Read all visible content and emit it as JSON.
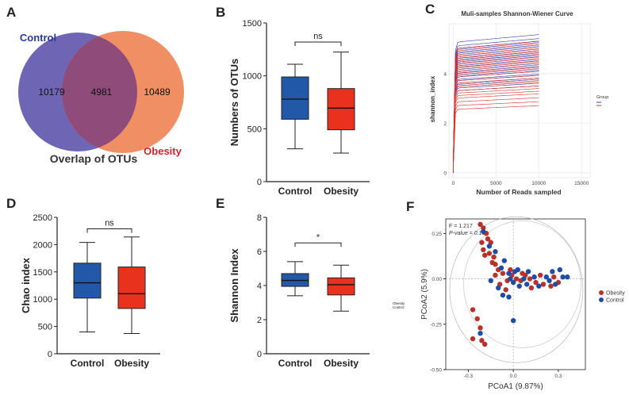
{
  "panels": {
    "a": "A",
    "b": "B",
    "c": "C",
    "d": "D",
    "e": "E",
    "f": "F"
  },
  "chart_data": [
    {
      "panel": "A",
      "type": "venn",
      "title": "Overlap of OTUs",
      "sets": [
        {
          "name": "Control",
          "only": 10179,
          "color": "#6e66b5"
        },
        {
          "name": "Obesity",
          "only": 10489,
          "color": "#f08e64"
        }
      ],
      "intersection": 4981,
      "overlap_color": "#8f4b7a"
    },
    {
      "panel": "B",
      "type": "box",
      "ylabel": "Numbers of OTUs",
      "ylim": [
        0,
        1500
      ],
      "yticks": [
        0,
        500,
        1000,
        1500
      ],
      "categories": [
        "Control",
        "Obesity"
      ],
      "boxes": [
        {
          "min": 310,
          "q1": 590,
          "median": 780,
          "q3": 990,
          "max": 1110,
          "color": "#2158a8"
        },
        {
          "min": 270,
          "q1": 490,
          "median": 695,
          "q3": 880,
          "max": 1225,
          "color": "#e8321e"
        }
      ],
      "significance": "ns"
    },
    {
      "panel": "C",
      "type": "line",
      "title": "Muli-samples Shannon-Wiener Curve",
      "xlabel": "Number of Reads sampled",
      "ylabel": "shannon_index",
      "xlim": [
        -500,
        16000
      ],
      "ylim": [
        -0.2,
        6.0
      ],
      "xticks": [
        0,
        5000,
        10000,
        15000
      ],
      "yticks": [
        0,
        2,
        4
      ],
      "legend_title": "Group",
      "series": [
        {
          "name": "Control",
          "color": "#3a3aa8",
          "plateaus": [
            5.25,
            5.1,
            5.0,
            4.95,
            4.85,
            4.8,
            4.7,
            4.6,
            4.55,
            4.5,
            4.45,
            4.4,
            4.3,
            4.25,
            4.15,
            4.05,
            4.0,
            3.9,
            3.85,
            3.75,
            3.7,
            3.6,
            3.55,
            3.4,
            3.3
          ]
        },
        {
          "name": "Obesity",
          "color": "#d8322c",
          "plateaus": [
            5.0,
            4.9,
            4.75,
            4.65,
            4.6,
            4.5,
            4.4,
            4.35,
            4.25,
            4.2,
            4.1,
            4.0,
            3.95,
            3.85,
            3.7,
            3.6,
            3.5,
            3.45,
            3.3,
            3.2,
            3.1,
            3.0,
            2.85,
            2.7,
            2.55
          ]
        }
      ]
    },
    {
      "panel": "D",
      "type": "box",
      "ylabel": "Chao index",
      "ylim": [
        0,
        2500
      ],
      "yticks": [
        0,
        500,
        1000,
        1500,
        2000,
        2500
      ],
      "categories": [
        "Control",
        "Obesity"
      ],
      "boxes": [
        {
          "min": 400,
          "q1": 1020,
          "median": 1300,
          "q3": 1660,
          "max": 2040,
          "color": "#2158a8"
        },
        {
          "min": 370,
          "q1": 830,
          "median": 1100,
          "q3": 1590,
          "max": 2140,
          "color": "#e8321e"
        }
      ],
      "significance": "ns"
    },
    {
      "panel": "E",
      "type": "box",
      "ylabel": "Shannon Index",
      "ylim": [
        0,
        8
      ],
      "yticks": [
        0,
        2,
        4,
        6,
        8
      ],
      "categories": [
        "Control",
        "Obesity"
      ],
      "boxes": [
        {
          "min": 3.4,
          "q1": 3.95,
          "median": 4.3,
          "q3": 4.7,
          "max": 5.4,
          "color": "#2158a8"
        },
        {
          "min": 2.5,
          "q1": 3.45,
          "median": 4.05,
          "q3": 4.45,
          "max": 5.2,
          "color": "#e8321e"
        }
      ],
      "significance": "*",
      "side_legend": [
        "Obesity",
        "Control"
      ]
    },
    {
      "panel": "F",
      "type": "scatter",
      "xlabel": "PCoA1 (9.87%)",
      "ylabel": "PCoA2 (5.9%)",
      "xlim": [
        -0.45,
        0.48
      ],
      "ylim": [
        -0.5,
        0.33
      ],
      "xticks": [
        -0.3,
        0.0,
        0.3
      ],
      "yticks": [
        -0.5,
        -0.25,
        0.0,
        0.25
      ],
      "annotations": [
        "F = 1.217",
        "P-value = 0.102"
      ],
      "series": [
        {
          "name": "Obesity",
          "color": "#b8322a",
          "points": [
            [
              -0.22,
              0.3
            ],
            [
              -0.2,
              0.28
            ],
            [
              -0.18,
              0.25
            ],
            [
              -0.21,
              0.2
            ],
            [
              -0.17,
              0.22
            ],
            [
              -0.15,
              0.2
            ],
            [
              -0.2,
              0.16
            ],
            [
              -0.19,
              0.13
            ],
            [
              -0.16,
              0.14
            ],
            [
              -0.13,
              0.12
            ],
            [
              -0.12,
              0.08
            ],
            [
              -0.1,
              0.05
            ],
            [
              -0.14,
              0.09
            ],
            [
              -0.07,
              0.03
            ],
            [
              -0.04,
              -0.01
            ],
            [
              -0.01,
              0.02
            ],
            [
              0.02,
              0.0
            ],
            [
              0.05,
              -0.01
            ],
            [
              0.08,
              0.02
            ],
            [
              0.11,
              0.0
            ],
            [
              0.15,
              -0.02
            ],
            [
              0.2,
              -0.03
            ],
            [
              0.25,
              -0.04
            ],
            [
              0.3,
              -0.02
            ],
            [
              0.12,
              -0.05
            ],
            [
              0.06,
              0.03
            ],
            [
              -0.09,
              -0.03
            ],
            [
              -0.05,
              -0.06
            ],
            [
              -0.12,
              0.02
            ],
            [
              -0.02,
              0.05
            ],
            [
              0.18,
              0.02
            ],
            [
              0.27,
              0.01
            ],
            [
              -0.27,
              -0.17
            ],
            [
              -0.24,
              -0.22
            ],
            [
              -0.22,
              -0.27
            ],
            [
              -0.27,
              -0.33
            ],
            [
              -0.21,
              -0.34
            ],
            [
              -0.19,
              -0.36
            ]
          ]
        },
        {
          "name": "Control",
          "color": "#1f4da6",
          "points": [
            [
              -0.2,
              0.26
            ],
            [
              -0.16,
              0.18
            ],
            [
              -0.12,
              0.15
            ],
            [
              -0.08,
              0.06
            ],
            [
              -0.06,
              0.1
            ],
            [
              -0.03,
              0.03
            ],
            [
              0.0,
              -0.02
            ],
            [
              0.03,
              0.05
            ],
            [
              0.07,
              0.0
            ],
            [
              0.1,
              0.04
            ],
            [
              0.14,
              0.01
            ],
            [
              0.17,
              -0.04
            ],
            [
              0.22,
              0.01
            ],
            [
              0.26,
              0.04
            ],
            [
              0.31,
              0.05
            ],
            [
              0.33,
              0.01
            ],
            [
              0.28,
              -0.03
            ],
            [
              0.36,
              0.01
            ],
            [
              0.24,
              -0.01
            ],
            [
              -0.1,
              -0.05
            ],
            [
              -0.07,
              -0.09
            ],
            [
              -0.03,
              -0.1
            ],
            [
              0.09,
              -0.03
            ],
            [
              -0.02,
              0.0
            ],
            [
              0.01,
              0.04
            ],
            [
              0.04,
              -0.04
            ],
            [
              -0.15,
              -0.01
            ],
            [
              -0.22,
              -0.3
            ],
            [
              0.0,
              -0.23
            ]
          ]
        }
      ],
      "legend": [
        "Obesity",
        "Control"
      ]
    }
  ]
}
